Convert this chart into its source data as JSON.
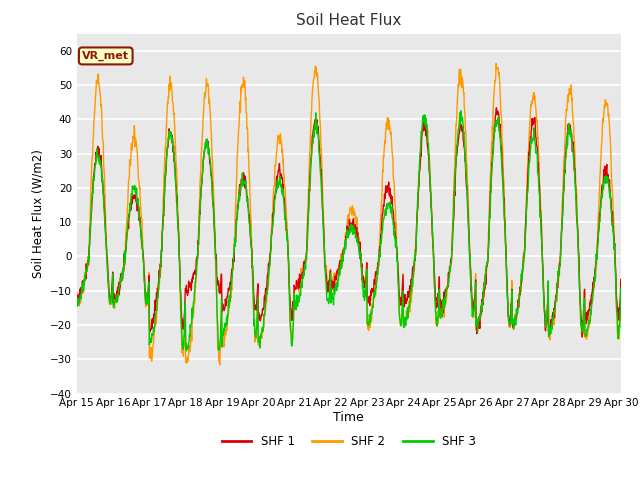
{
  "title": "Soil Heat Flux",
  "xlabel": "Time",
  "ylabel": "Soil Heat Flux (W/m2)",
  "ylim": [
    -40,
    65
  ],
  "yticks": [
    -40,
    -30,
    -20,
    -10,
    0,
    10,
    20,
    30,
    40,
    50,
    60
  ],
  "bg_color": "#ffffff",
  "plot_bg": "#e8e8e8",
  "legend_entries": [
    "SHF 1",
    "SHF 2",
    "SHF 3"
  ],
  "line_colors": [
    "#dd0000",
    "#ff9900",
    "#00cc00"
  ],
  "line_width": 1.0,
  "annotation_text": "VR_met",
  "annotation_fg": "#8b1a00",
  "annotation_bg": "#ffffcc",
  "days": [
    "Apr 15",
    "Apr 16",
    "Apr 17",
    "Apr 18",
    "Apr 19",
    "Apr 20",
    "Apr 21",
    "Apr 22",
    "Apr 23",
    "Apr 24",
    "Apr 25",
    "Apr 26",
    "Apr 27",
    "Apr 28",
    "Apr 29",
    "Apr 30"
  ],
  "n_days": 15,
  "n_per_day": 96,
  "daily_params": [
    [
      31,
      51,
      30,
      -12,
      -13,
      -13
    ],
    [
      18,
      35,
      20,
      -13,
      -14,
      -14
    ],
    [
      36,
      50,
      36,
      -21,
      -29,
      -26
    ],
    [
      33,
      50,
      33,
      -10,
      -31,
      -27
    ],
    [
      23,
      51,
      22,
      -16,
      -25,
      -23
    ],
    [
      25,
      35,
      22,
      -18,
      -25,
      -25
    ],
    [
      40,
      55,
      38,
      -9,
      -9,
      -14
    ],
    [
      10,
      13,
      8,
      -8,
      -8,
      -12
    ],
    [
      20,
      40,
      15,
      -13,
      -20,
      -20
    ],
    [
      38,
      40,
      41,
      -14,
      -20,
      -20
    ],
    [
      38,
      54,
      41,
      -15,
      -17,
      -17
    ],
    [
      42,
      55,
      40,
      -20,
      -20,
      -20
    ],
    [
      40,
      47,
      35,
      -20,
      -20,
      -20
    ],
    [
      38,
      48,
      37,
      -21,
      -22,
      -22
    ],
    [
      25,
      45,
      23,
      -18,
      -23,
      -23
    ]
  ]
}
